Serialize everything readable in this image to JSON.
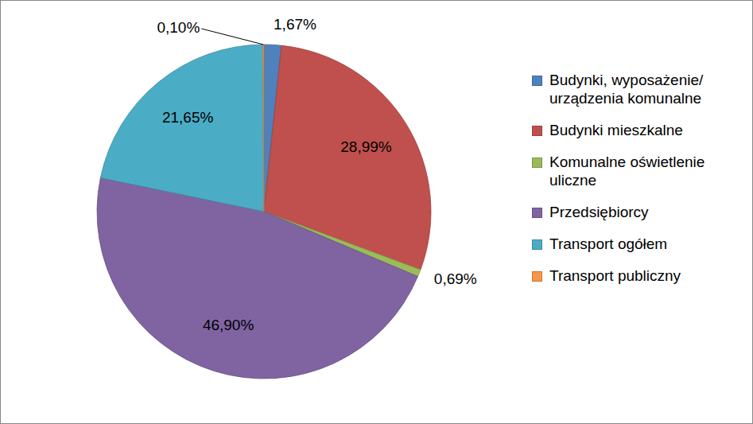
{
  "chart_data": {
    "type": "pie",
    "categories": [
      "Budynki, wyposażenie/ urządzenia komunalne",
      "Budynki mieszkalne",
      "Komunalne oświetlenie uliczne",
      "Przedsiębiorcy",
      "Transport ogółem",
      "Transport publiczny"
    ],
    "values": [
      1.67,
      28.99,
      0.69,
      46.9,
      21.65,
      0.1
    ],
    "value_labels": [
      "1,67%",
      "28,99%",
      "0,69%",
      "46,90%",
      "21,65%",
      "0,10%"
    ],
    "colors": [
      "#4F81BD",
      "#C0504D",
      "#9BBB59",
      "#8064A2",
      "#4BACC6",
      "#F79646"
    ],
    "data_labels": true,
    "legend": "right"
  }
}
